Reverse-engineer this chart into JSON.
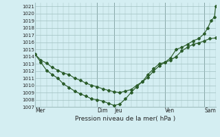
{
  "bg_color": "#d4eef2",
  "line_color": "#2a5c2a",
  "grid_major_color": "#a0bfc0",
  "xlabel": "Pression niveau de la mer( hPa )",
  "ylim": [
    1007.0,
    1021.5
  ],
  "ytick_vals": [
    1007,
    1008,
    1009,
    1010,
    1011,
    1012,
    1013,
    1014,
    1015,
    1016,
    1017,
    1018,
    1019,
    1020,
    1021
  ],
  "xlim": [
    0.0,
    16.0
  ],
  "day_tick_positions": [
    0.0,
    5.5,
    7.0,
    11.5,
    15.0
  ],
  "day_tick_labels": [
    "Mer",
    "Dim",
    "Jeu",
    "Ven",
    "Sam"
  ],
  "vline_positions": [
    0.0,
    5.5,
    7.0,
    11.5,
    15.0
  ],
  "series1_x": [
    0.0,
    0.5,
    1.0,
    1.5,
    2.0,
    2.5,
    3.0,
    3.5,
    4.0,
    4.5,
    5.0,
    5.5,
    6.0,
    6.5,
    7.0,
    7.5,
    8.0,
    8.5,
    9.0,
    9.5,
    10.0,
    10.5,
    11.0,
    11.5,
    12.0,
    12.5,
    13.0,
    13.5,
    14.0,
    14.5,
    15.0,
    15.5,
    16.0
  ],
  "series1_y": [
    1014.3,
    1013.5,
    1013.1,
    1012.5,
    1012.1,
    1011.7,
    1011.5,
    1011.0,
    1010.7,
    1010.3,
    1010.0,
    1009.8,
    1009.5,
    1009.3,
    1009.1,
    1009.0,
    1009.2,
    1009.4,
    1010.0,
    1010.5,
    1011.1,
    1012.0,
    1012.7,
    1013.2,
    1013.5,
    1014.0,
    1014.8,
    1015.3,
    1015.7,
    1015.9,
    1016.2,
    1016.5,
    1016.6
  ],
  "series2_x": [
    0.0,
    0.5,
    1.0,
    1.5,
    2.0,
    2.5,
    3.0,
    3.5,
    4.0,
    4.5,
    5.0,
    5.5,
    6.0,
    6.5,
    7.0,
    7.5,
    8.0,
    8.5,
    9.0,
    9.5,
    10.0,
    10.5,
    11.0,
    11.5,
    12.0,
    12.5,
    13.0,
    13.5,
    14.0,
    14.5,
    15.0,
    15.3,
    15.6,
    15.9,
    16.0
  ],
  "series2_y": [
    1014.3,
    1013.2,
    1012.1,
    1011.5,
    1011.0,
    1010.2,
    1009.7,
    1009.2,
    1008.8,
    1008.5,
    1008.1,
    1008.0,
    1007.8,
    1007.5,
    1007.2,
    1007.4,
    1008.1,
    1009.0,
    1009.8,
    1010.5,
    1011.5,
    1012.3,
    1013.0,
    1013.2,
    1013.8,
    1015.0,
    1015.3,
    1015.7,
    1016.2,
    1016.5,
    1017.2,
    1018.0,
    1019.0,
    1019.5,
    1021.0
  ]
}
